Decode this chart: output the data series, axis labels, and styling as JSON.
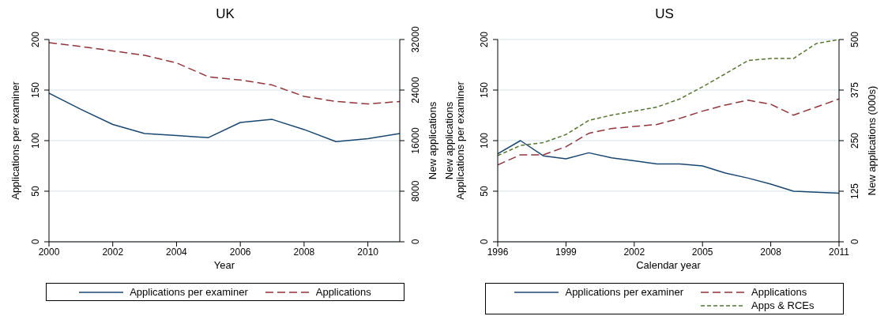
{
  "chart_data": [
    {
      "type": "line",
      "title": "UK",
      "xlabel": "Year",
      "ylabel": "Applications per examiner",
      "y2label": "New applications",
      "x": [
        2000,
        2001,
        2002,
        2003,
        2004,
        2005,
        2006,
        2007,
        2008,
        2009,
        2010,
        2011
      ],
      "xlim": [
        2000,
        2011
      ],
      "xticks": [
        2000,
        2002,
        2004,
        2006,
        2008,
        2010
      ],
      "ylim": [
        0,
        200
      ],
      "yticks": [
        0,
        50,
        100,
        150,
        200
      ],
      "y2lim": [
        0,
        32000
      ],
      "y2ticks": [
        0,
        8000,
        16000,
        24000,
        32000
      ],
      "grid": "y",
      "legend": "bottom",
      "marker": "none",
      "series": [
        {
          "name": "Applications per examiner",
          "color": "#1a476f",
          "line_style": "solid",
          "values": [
            147,
            131,
            116,
            107,
            105,
            103,
            118,
            121,
            111,
            99,
            102,
            107
          ]
        },
        {
          "name": "Applications",
          "color": "#90353b",
          "line_style": "dashed",
          "axis": "y2",
          "values": [
            31500,
            30900,
            30200,
            29500,
            28300,
            26100,
            25600,
            24800,
            23000,
            22200,
            21800,
            22200
          ]
        }
      ]
    },
    {
      "type": "line",
      "title": "US",
      "xlabel": "Calendar year",
      "ylabel": "New applications\nApplications per examiner",
      "y2label": "New applications (000s)",
      "x": [
        1996,
        1997,
        1998,
        1999,
        2000,
        2001,
        2002,
        2003,
        2004,
        2005,
        2006,
        2007,
        2008,
        2009,
        2010,
        2011
      ],
      "xlim": [
        1996,
        2011
      ],
      "xticks": [
        1996,
        1999,
        2002,
        2005,
        2008,
        2011
      ],
      "ylim": [
        0,
        200
      ],
      "yticks": [
        0,
        50,
        100,
        150,
        200
      ],
      "y2lim": [
        0,
        500
      ],
      "y2ticks": [
        0,
        125,
        250,
        375,
        500
      ],
      "grid": "y",
      "legend": "bottom",
      "marker": "none",
      "series": [
        {
          "name": "Applications per examiner",
          "color": "#1a476f",
          "line_style": "solid",
          "values": [
            87,
            100,
            85,
            82,
            88,
            83,
            80,
            77,
            77,
            75,
            68,
            63,
            57,
            50,
            49,
            48
          ]
        },
        {
          "name": "Applications",
          "color": "#90353b",
          "line_style": "dashed",
          "axis": "y2",
          "values": [
            190,
            215,
            215,
            235,
            268,
            280,
            285,
            290,
            305,
            323,
            338,
            350,
            340,
            313,
            333,
            353
          ]
        },
        {
          "name": "Apps & RCEs",
          "color": "#55752f",
          "line_style": "dotted",
          "axis": "y2",
          "values": [
            213,
            238,
            245,
            265,
            300,
            313,
            323,
            333,
            353,
            383,
            415,
            448,
            453,
            453,
            490,
            500
          ]
        }
      ]
    }
  ]
}
